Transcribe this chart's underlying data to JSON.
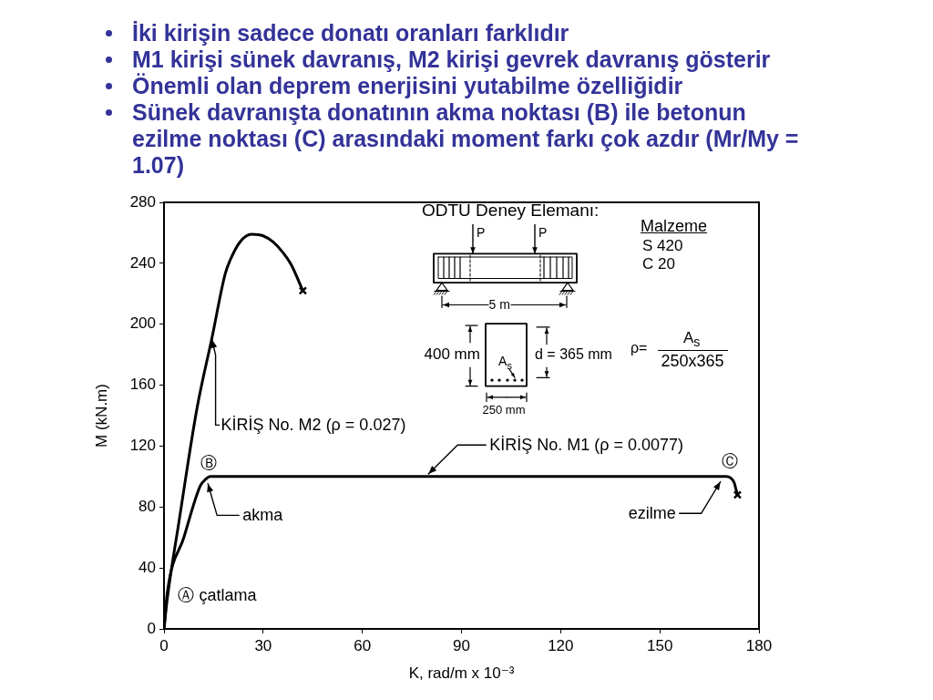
{
  "chart_data": {
    "type": "line",
    "xlabel": "K, rad/m x 10⁻³",
    "ylabel": "M (kN.m)",
    "xlim": [
      0,
      180
    ],
    "xticks": [
      0,
      30,
      60,
      90,
      120,
      150,
      180
    ],
    "ylim": [
      0,
      280
    ],
    "yticks": [
      0,
      40,
      80,
      120,
      160,
      200,
      240,
      280
    ],
    "marker": "none",
    "series": [
      {
        "name": "KİRİŞ No. M2 (ρ = 0.027)",
        "color": "#000000",
        "x": [
          0,
          1,
          4.5,
          10,
          14.5,
          18.5,
          20,
          23,
          26.5,
          30,
          33,
          36,
          38.5,
          42
        ],
        "values": [
          0,
          20,
          70,
          145,
          191,
          233,
          242,
          254,
          259,
          258,
          254,
          247,
          239,
          222
        ]
      },
      {
        "name": "KİRİŞ No. M1 (ρ = 0.0077)",
        "color": "#000000",
        "x": [
          0,
          1,
          6,
          11,
          12.5,
          14,
          80,
          170,
          171.5,
          172.5,
          173,
          173.5
        ],
        "values": [
          0,
          24,
          60,
          94,
          98,
          100,
          100,
          100,
          99,
          96,
          92,
          88
        ]
      },
      {
        "type": "scatter",
        "color": "#000000",
        "marker": "cross",
        "x": [
          42
        ],
        "values": [
          222
        ]
      },
      {
        "type": "scatter",
        "color": "#000000",
        "marker": "cross",
        "x": [
          173.5
        ],
        "values": [
          88
        ]
      }
    ],
    "annotations": [
      "İki kirişin sadece donatı oranları farklıdır",
      "M1 kirişi sünek davranış, M2 kirişi gevrek davranış gösterir",
      "Önemli olan deprem enerjisini yutabilme özelliğidir",
      "Sünek davranışta donatının akma noktası (B) ile betonun ezilme noktası (C) arasındaki moment farkı çok azdır (Mr/My = 1.07)",
      "ODTÜ Deney Elemanı:",
      "P",
      "P",
      "5 m",
      "400 mm",
      "d = 365 mm",
      "A$_{s}$",
      "250 mm",
      "Malzeme",
      "S 420",
      "C 20",
      "ρ=",
      "A$_{s}$",
      "250x365",
      {
        "text": "Ⓐ çatlama",
        "x": 1.5,
        "y": 22
      },
      {
        "text": "Ⓑ",
        "x": 14,
        "y": 100
      },
      {
        "text": "akma",
        "x": 13,
        "y": 97
      },
      {
        "text": "Ⓒ",
        "x": 170,
        "y": 100
      },
      {
        "text": "ezilme",
        "x": 170,
        "y": 100
      }
    ]
  }
}
